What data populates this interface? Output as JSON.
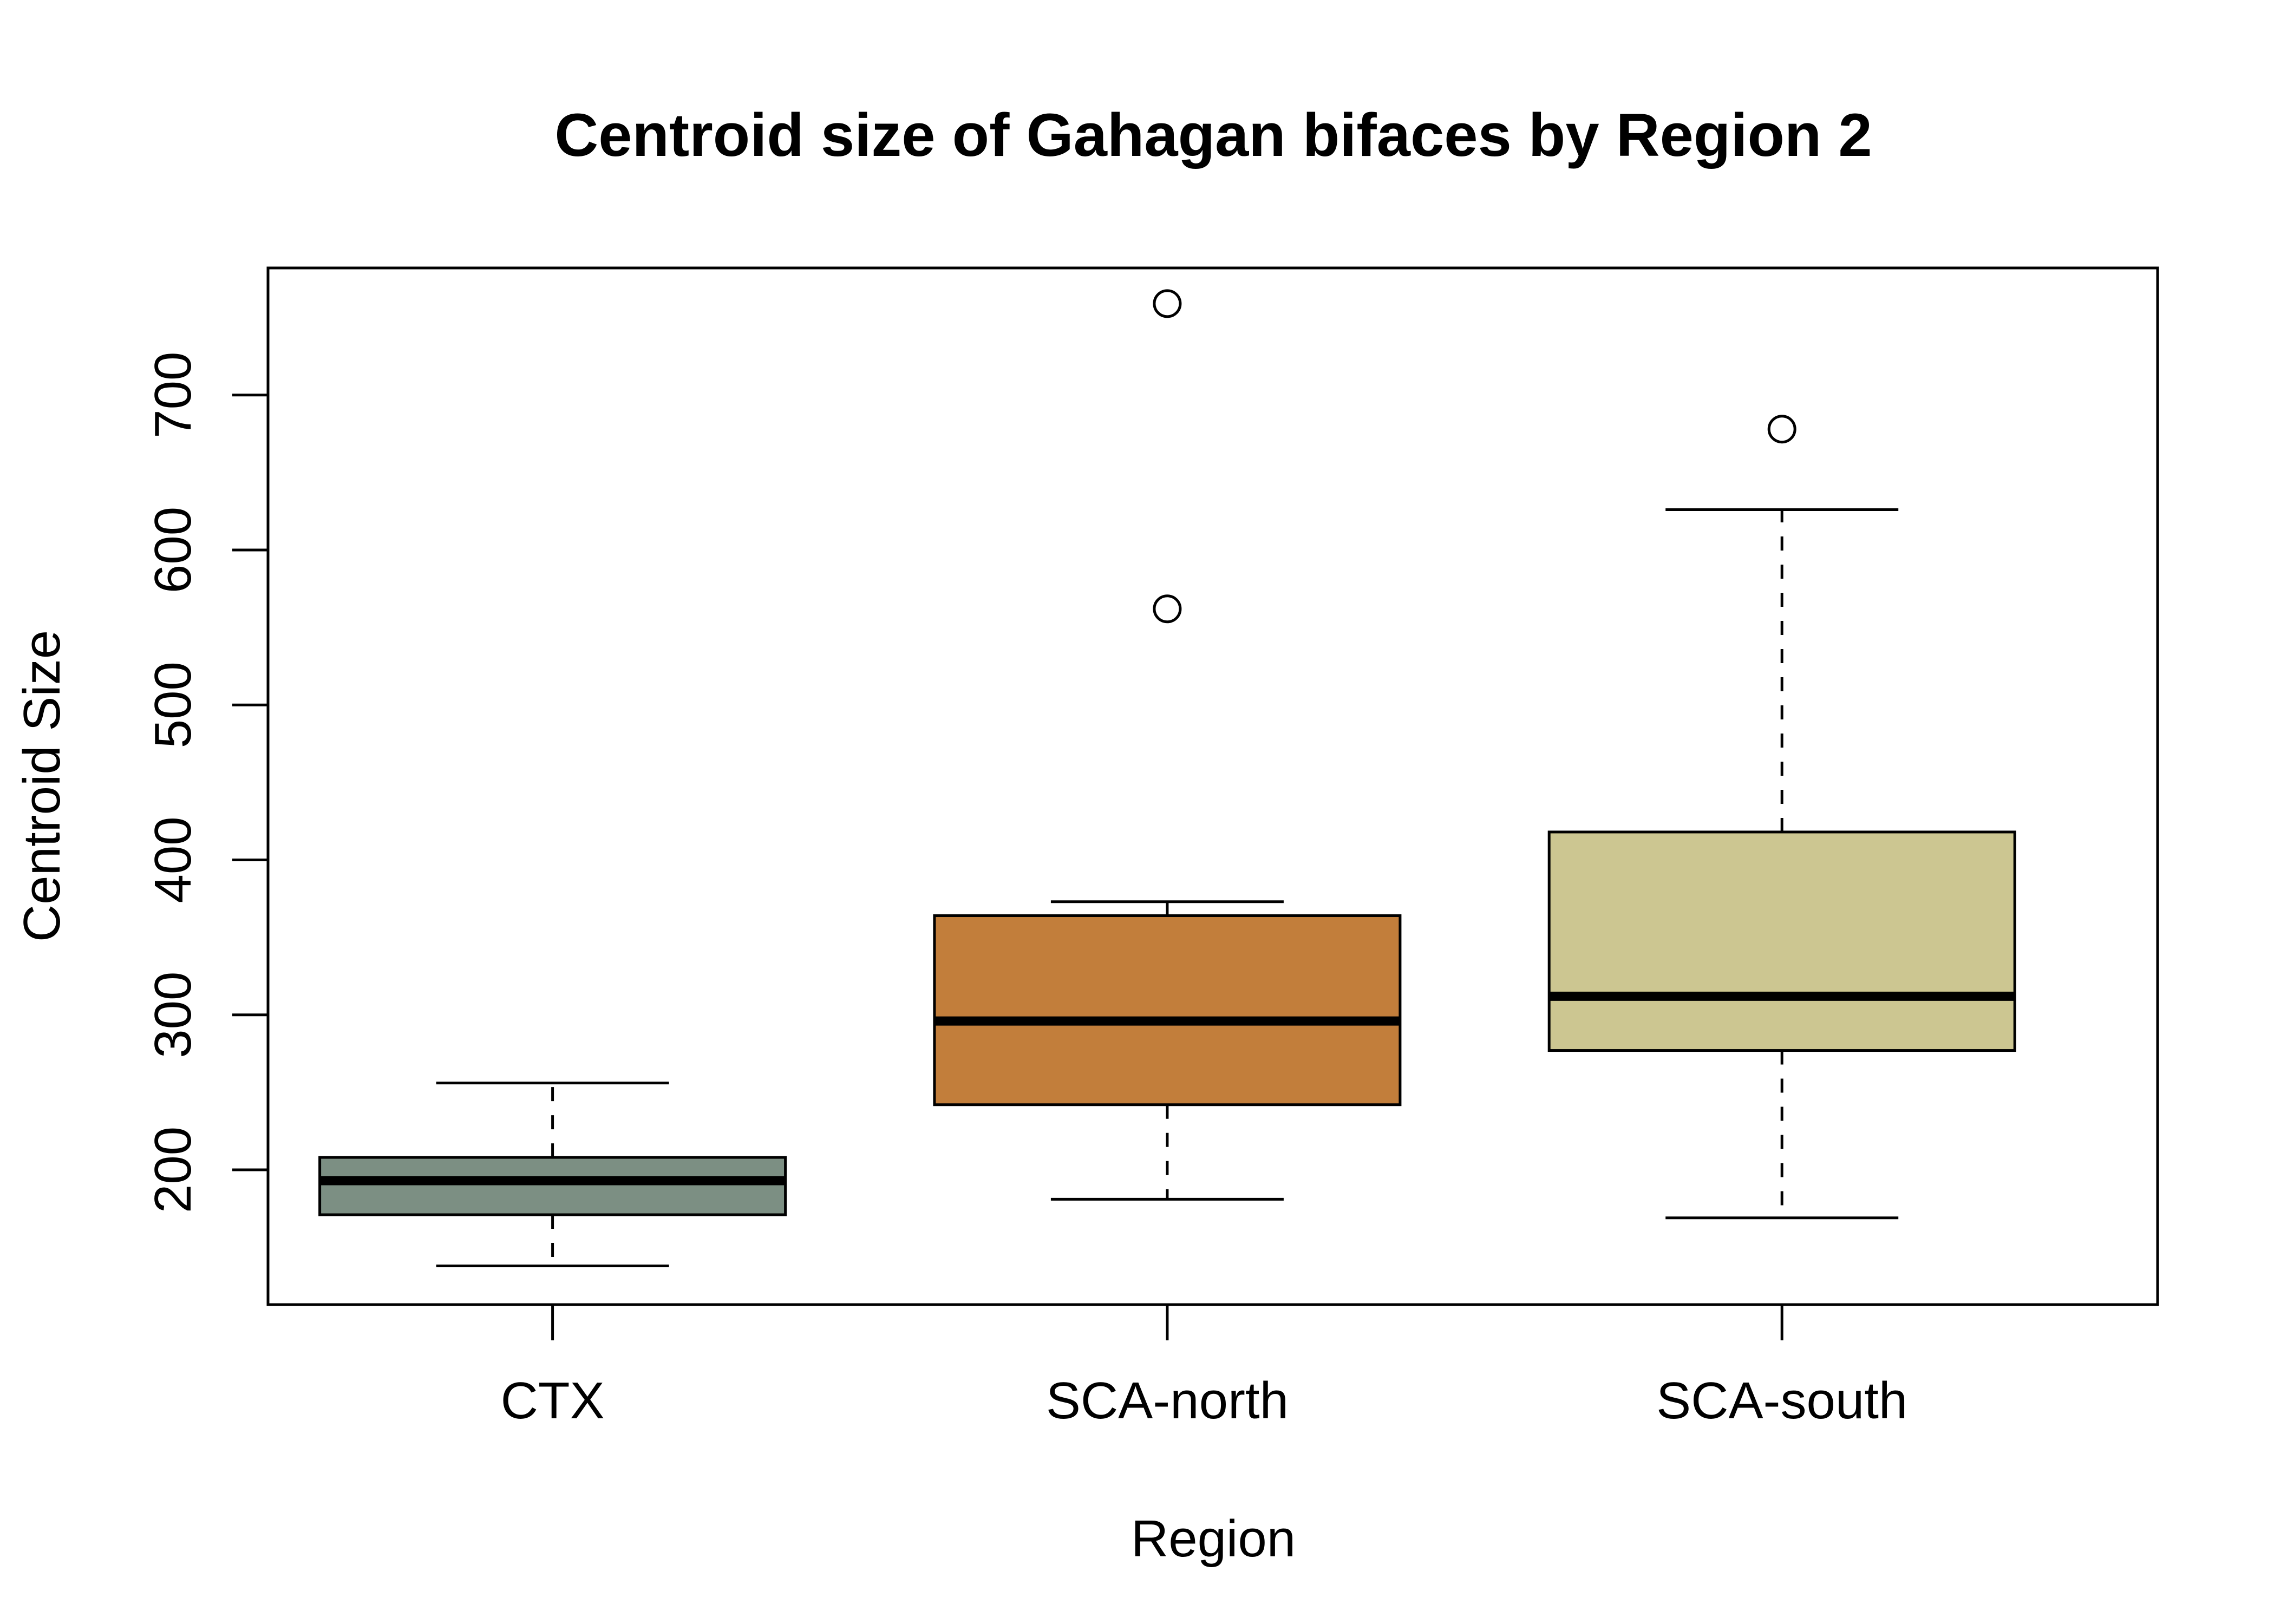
{
  "chart_data": {
    "type": "box",
    "title": "Centroid size of Gahagan bifaces by Region 2",
    "xlabel": "Region",
    "ylabel": "Centroid Size",
    "ylim": [
      113,
      782
    ],
    "yticks": [
      "200",
      "300",
      "400",
      "500",
      "600",
      "700"
    ],
    "grid": false,
    "legend": "none",
    "categories": [
      "CTX",
      "SCA-north",
      "SCA-south"
    ],
    "boxes": [
      {
        "category": "CTX",
        "min": 138,
        "q1": 171,
        "median": 193,
        "q3": 208,
        "max": 256,
        "outliers": [],
        "color": "#7c8f83"
      },
      {
        "category": "SCA-north",
        "min": 181,
        "q1": 242,
        "median": 296,
        "q3": 364,
        "max": 373,
        "outliers": [
          562,
          759
        ],
        "color": "#c27e3b"
      },
      {
        "category": "SCA-south",
        "min": 169,
        "q1": 277,
        "median": 312,
        "q3": 418,
        "max": 626,
        "outliers": [
          678
        ],
        "color": "#ccc691"
      }
    ]
  }
}
